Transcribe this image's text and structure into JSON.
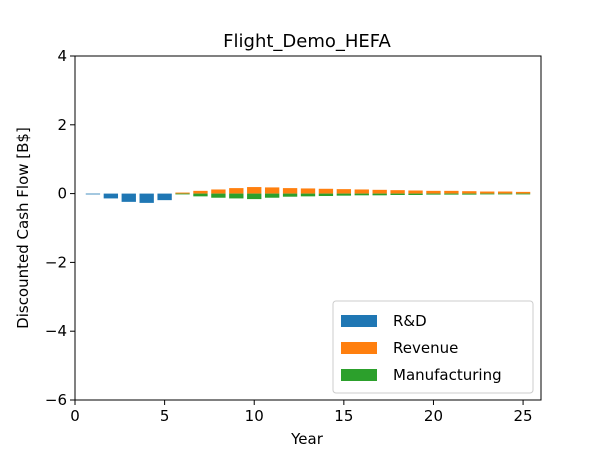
{
  "chart_data": {
    "type": "bar",
    "title": "Flight_Demo_HEFA",
    "xlabel": "Year",
    "ylabel": "Discounted Cash Flow [B$]",
    "xlim": [
      0,
      26
    ],
    "ylim": [
      -6,
      4
    ],
    "xticks": [
      0,
      5,
      10,
      15,
      20,
      25
    ],
    "yticks": [
      -6,
      -4,
      -2,
      0,
      2,
      4
    ],
    "grid": false,
    "legend_position": "lower-right",
    "series": [
      {
        "name": "R&D",
        "color": "#1f77b4",
        "x": [
          1,
          2,
          3,
          4,
          5
        ],
        "values": [
          -0.02,
          -0.14,
          -0.24,
          -0.27,
          -0.19
        ]
      },
      {
        "name": "Revenue",
        "color": "#ff7f0e",
        "x": [
          6,
          7,
          8,
          9,
          10,
          11,
          12,
          13,
          14,
          15,
          16,
          17,
          18,
          19,
          20,
          21,
          22,
          23,
          24,
          25
        ],
        "values": [
          0.03,
          0.08,
          0.12,
          0.16,
          0.19,
          0.18,
          0.16,
          0.15,
          0.14,
          0.13,
          0.12,
          0.11,
          0.1,
          0.09,
          0.08,
          0.08,
          0.07,
          0.06,
          0.06,
          0.05
        ]
      },
      {
        "name": "Manufacturing",
        "color": "#2ca02c",
        "x": [
          6,
          7,
          8,
          9,
          10,
          11,
          12,
          13,
          14,
          15,
          16,
          17,
          18,
          19,
          20,
          21,
          22,
          23,
          24,
          25
        ],
        "values": [
          -0.01,
          -0.08,
          -0.12,
          -0.14,
          -0.16,
          -0.12,
          -0.09,
          -0.08,
          -0.07,
          -0.06,
          -0.05,
          -0.05,
          -0.04,
          -0.04,
          -0.03,
          -0.03,
          -0.03,
          -0.02,
          -0.02,
          -0.02
        ]
      }
    ]
  }
}
